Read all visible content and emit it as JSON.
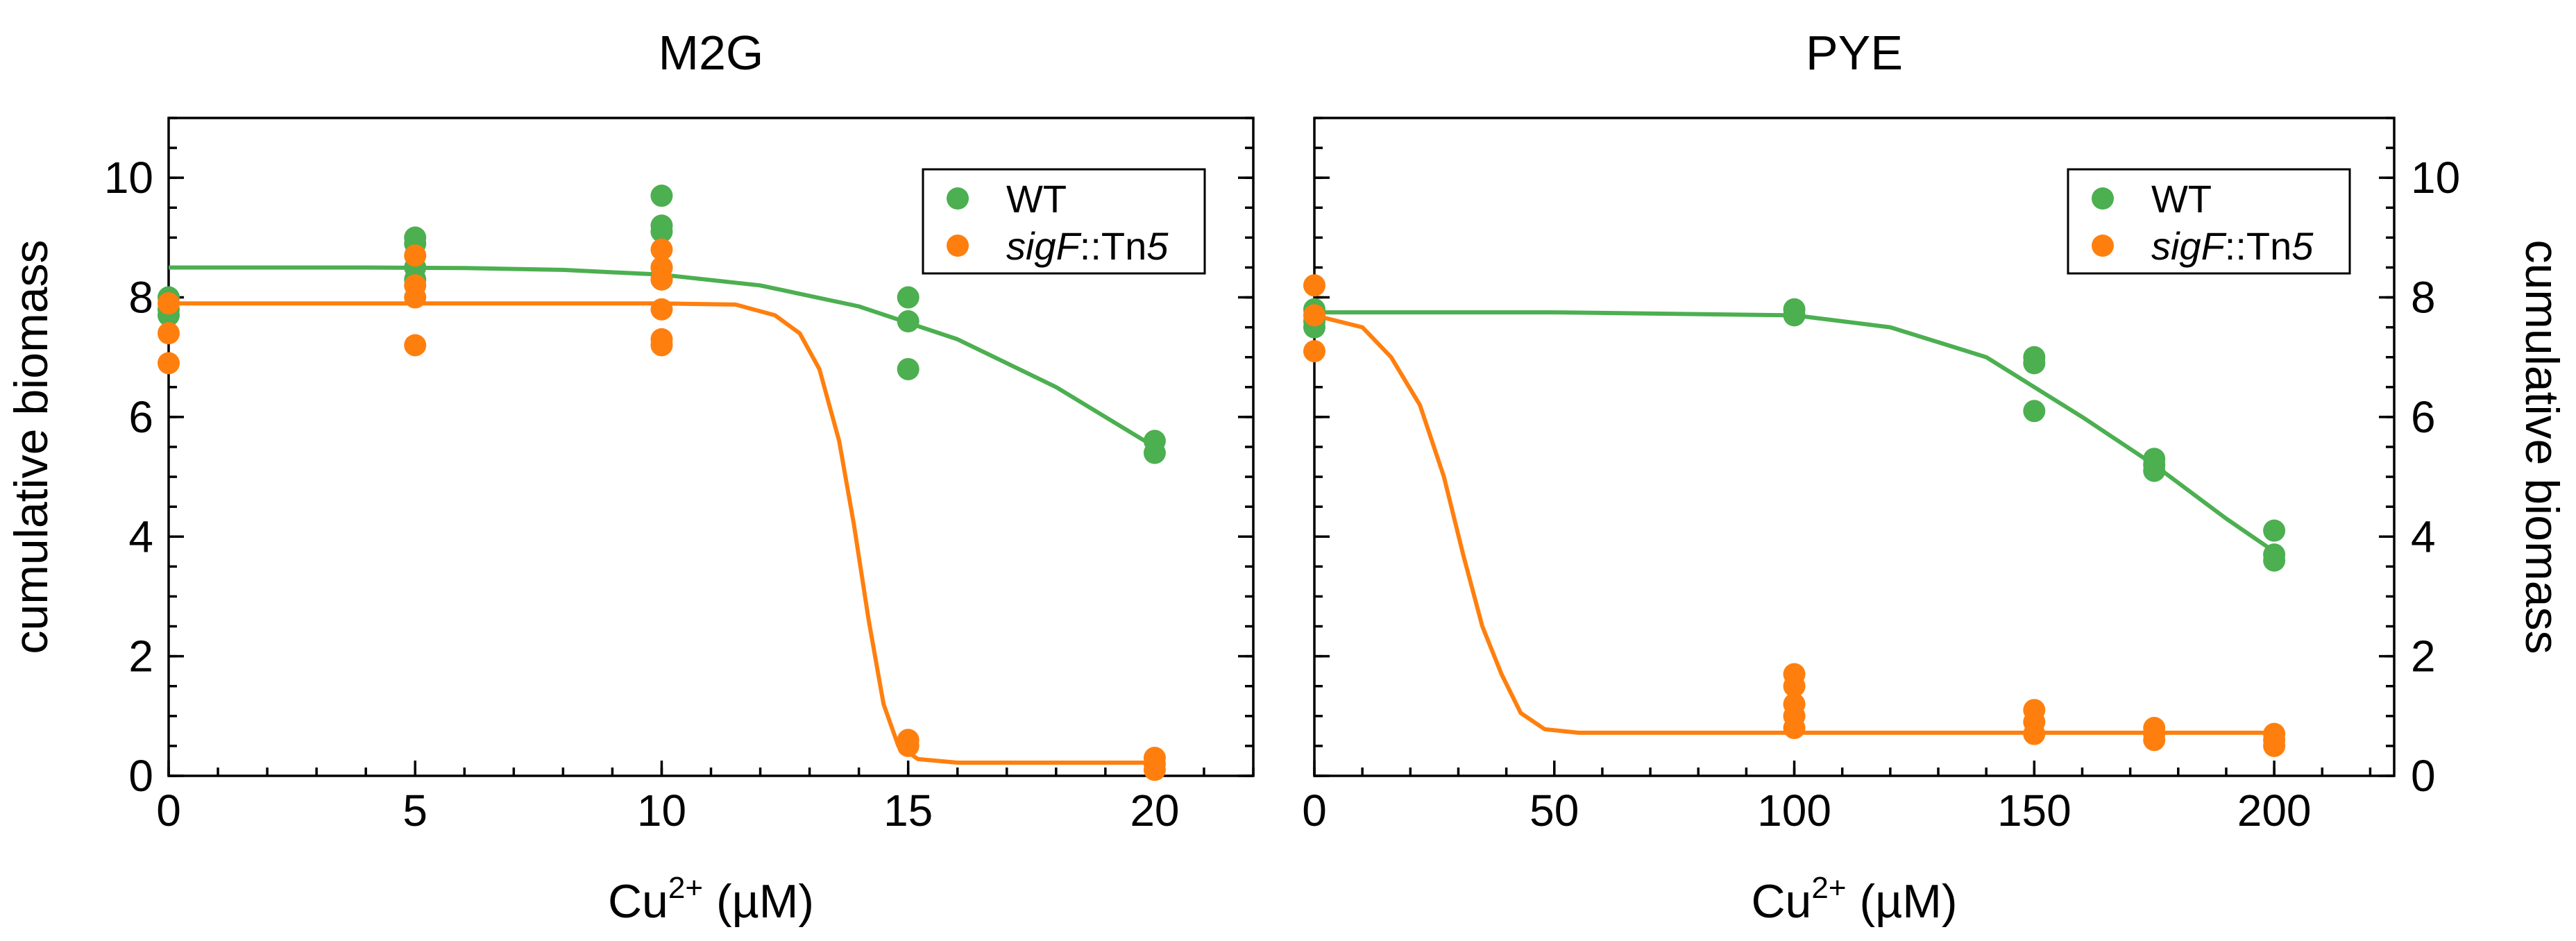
{
  "colors": {
    "wt": "#4caf50",
    "mutant": "#ff7f0e"
  },
  "chart_data": [
    {
      "type": "scatter",
      "title": "M2G",
      "xlabel": {
        "base": "Cu",
        "sup": "2+",
        "unit": " (µM)"
      },
      "ylabel": "cumulative biomass",
      "ylabel_side": "left",
      "xlim": [
        0,
        22
      ],
      "ylim": [
        0,
        11
      ],
      "xticks": [
        0,
        5,
        10,
        15,
        20
      ],
      "yticks": [
        0,
        2,
        4,
        6,
        8,
        10
      ],
      "legend_position": "top-right",
      "series": [
        {
          "name": "WT",
          "name_italic": "",
          "name_rest": "WT",
          "color_key": "wt",
          "points": [
            [
              0,
              8.0
            ],
            [
              0,
              7.8
            ],
            [
              0,
              7.7
            ],
            [
              5,
              9.0
            ],
            [
              5,
              8.9
            ],
            [
              5,
              8.5
            ],
            [
              5,
              8.3
            ],
            [
              10,
              9.7
            ],
            [
              10,
              9.2
            ],
            [
              10,
              9.1
            ],
            [
              10,
              8.5
            ],
            [
              10,
              8.3
            ],
            [
              15,
              8.0
            ],
            [
              15,
              7.6
            ],
            [
              15,
              6.8
            ],
            [
              20,
              5.6
            ],
            [
              20,
              5.4
            ]
          ],
          "fit": [
            [
              0,
              8.5
            ],
            [
              2,
              8.5
            ],
            [
              4,
              8.5
            ],
            [
              6,
              8.49
            ],
            [
              8,
              8.46
            ],
            [
              10,
              8.38
            ],
            [
              12,
              8.2
            ],
            [
              14,
              7.85
            ],
            [
              16,
              7.3
            ],
            [
              18,
              6.5
            ],
            [
              19,
              6.0
            ],
            [
              20,
              5.5
            ]
          ]
        },
        {
          "name": "sigF::Tn5",
          "name_italic": "sigF",
          "name_rest": "::Tn",
          "name_italic2": "5",
          "color_key": "mutant",
          "points": [
            [
              0,
              7.9
            ],
            [
              0,
              7.4
            ],
            [
              0,
              6.9
            ],
            [
              5,
              8.7
            ],
            [
              5,
              8.2
            ],
            [
              5,
              8.0
            ],
            [
              5,
              7.2
            ],
            [
              10,
              8.8
            ],
            [
              10,
              8.5
            ],
            [
              10,
              8.3
            ],
            [
              10,
              7.8
            ],
            [
              10,
              7.3
            ],
            [
              10,
              7.2
            ],
            [
              15,
              0.6
            ],
            [
              15,
              0.5
            ],
            [
              20,
              0.3
            ],
            [
              20,
              0.2
            ],
            [
              20,
              0.1
            ]
          ],
          "fit": [
            [
              0,
              7.9
            ],
            [
              5,
              7.9
            ],
            [
              10,
              7.9
            ],
            [
              11.5,
              7.88
            ],
            [
              12.3,
              7.7
            ],
            [
              12.8,
              7.4
            ],
            [
              13.2,
              6.8
            ],
            [
              13.6,
              5.6
            ],
            [
              13.9,
              4.2
            ],
            [
              14.2,
              2.6
            ],
            [
              14.5,
              1.2
            ],
            [
              14.8,
              0.5
            ],
            [
              15.2,
              0.28
            ],
            [
              16,
              0.22
            ],
            [
              18,
              0.22
            ],
            [
              20,
              0.22
            ]
          ]
        }
      ]
    },
    {
      "type": "scatter",
      "title": "PYE",
      "xlabel": {
        "base": "Cu",
        "sup": "2+",
        "unit": " (µM)"
      },
      "ylabel": "cumulative biomass",
      "ylabel_side": "right",
      "xlim": [
        0,
        225
      ],
      "ylim": [
        0,
        11
      ],
      "xticks": [
        0,
        50,
        100,
        150,
        200
      ],
      "yticks": [
        0,
        2,
        4,
        6,
        8,
        10
      ],
      "legend_position": "top-right",
      "series": [
        {
          "name": "WT",
          "name_italic": "",
          "name_rest": "WT",
          "color_key": "wt",
          "points": [
            [
              0,
              7.8
            ],
            [
              0,
              7.6
            ],
            [
              0,
              7.5
            ],
            [
              100,
              7.8
            ],
            [
              100,
              7.7
            ],
            [
              150,
              7.0
            ],
            [
              150,
              6.9
            ],
            [
              150,
              6.1
            ],
            [
              175,
              5.3
            ],
            [
              175,
              5.2
            ],
            [
              175,
              5.1
            ],
            [
              200,
              4.1
            ],
            [
              200,
              3.7
            ],
            [
              200,
              3.6
            ]
          ],
          "fit": [
            [
              0,
              7.75
            ],
            [
              50,
              7.75
            ],
            [
              100,
              7.7
            ],
            [
              120,
              7.5
            ],
            [
              140,
              7.0
            ],
            [
              160,
              6.0
            ],
            [
              175,
              5.2
            ],
            [
              190,
              4.3
            ],
            [
              200,
              3.75
            ]
          ]
        },
        {
          "name": "sigF::Tn5",
          "name_italic": "sigF",
          "name_rest": "::Tn",
          "name_italic2": "5",
          "color_key": "mutant",
          "points": [
            [
              0,
              8.2
            ],
            [
              0,
              7.7
            ],
            [
              0,
              7.1
            ],
            [
              100,
              1.7
            ],
            [
              100,
              1.5
            ],
            [
              100,
              1.2
            ],
            [
              100,
              1.0
            ],
            [
              100,
              0.8
            ],
            [
              150,
              1.1
            ],
            [
              150,
              0.9
            ],
            [
              150,
              0.7
            ],
            [
              175,
              0.8
            ],
            [
              175,
              0.7
            ],
            [
              175,
              0.6
            ],
            [
              200,
              0.7
            ],
            [
              200,
              0.6
            ],
            [
              200,
              0.5
            ]
          ],
          "fit": [
            [
              0,
              7.7
            ],
            [
              10,
              7.5
            ],
            [
              16,
              7.0
            ],
            [
              22,
              6.2
            ],
            [
              27,
              5.0
            ],
            [
              31,
              3.7
            ],
            [
              35,
              2.5
            ],
            [
              39,
              1.7
            ],
            [
              43,
              1.05
            ],
            [
              48,
              0.78
            ],
            [
              55,
              0.72
            ],
            [
              100,
              0.72
            ],
            [
              200,
              0.72
            ]
          ]
        }
      ]
    }
  ]
}
